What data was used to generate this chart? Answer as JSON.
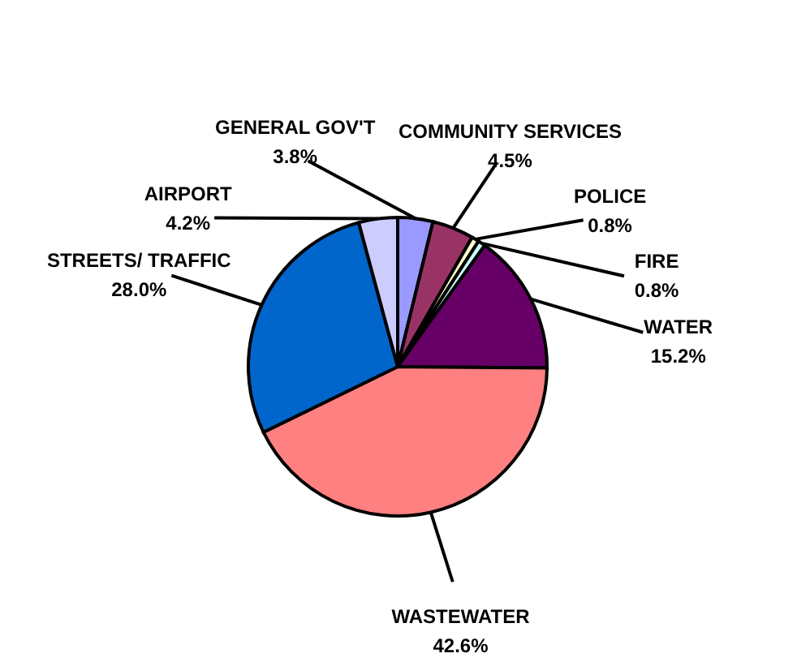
{
  "chart_data": {
    "type": "pie",
    "categories": [
      "GENERAL GOV'T",
      "COMMUNITY SERVICES",
      "POLICE",
      "FIRE",
      "WATER",
      "WASTEWATER",
      "STREETS/ TRAFFIC",
      "AIRPORT"
    ],
    "values": [
      3.8,
      4.5,
      0.8,
      0.8,
      15.2,
      42.6,
      28.0,
      4.2
    ],
    "value_labels": [
      "3.8%",
      "4.5%",
      "0.8%",
      "0.8%",
      "15.2%",
      "42.6%",
      "28.0%",
      "4.2%"
    ],
    "colors": [
      "#9999ff",
      "#993366",
      "#ffffcc",
      "#ccffff",
      "#660066",
      "#ff8080",
      "#0066cc",
      "#ccccff"
    ]
  }
}
